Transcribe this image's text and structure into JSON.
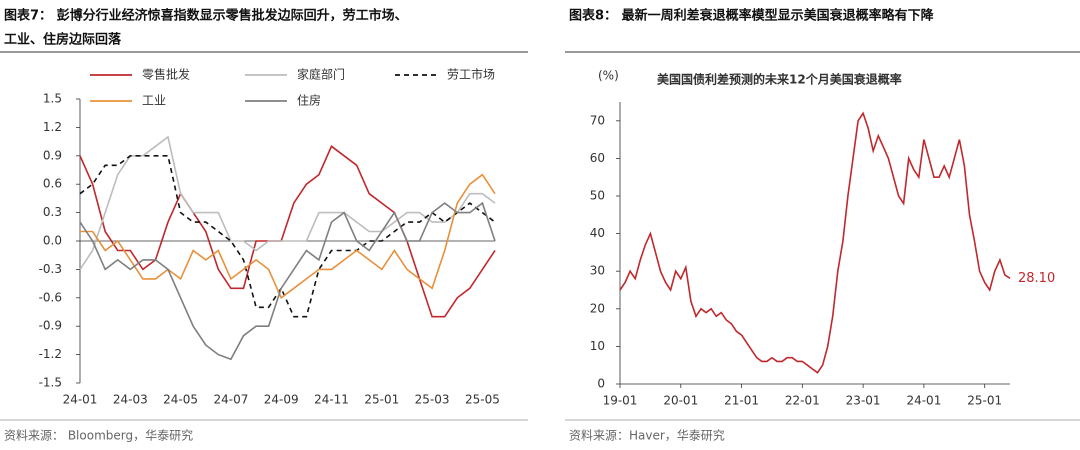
{
  "chart_data": [
    {
      "type": "line",
      "title": [
        "图表7： 彭博分行业经济惊喜指数显示零售批发边际回升，劳工市场、",
        "工业、住房边际回落"
      ],
      "categories": [
        "24-01",
        null,
        null,
        null,
        "24-03",
        null,
        null,
        null,
        "24-05",
        null,
        null,
        null,
        "24-07",
        null,
        null,
        null,
        "24-09",
        null,
        null,
        null,
        "24-11",
        null,
        null,
        null,
        "25-01",
        null,
        null,
        null,
        "25-03",
        null,
        null,
        null,
        "25-05",
        null
      ],
      "series": [
        {
          "name": "零售批发",
          "color": "#c0282d",
          "dash": false,
          "values": [
            0.9,
            0.6,
            0.1,
            -0.1,
            -0.1,
            -0.3,
            -0.2,
            0.2,
            0.5,
            0.3,
            0.1,
            -0.3,
            -0.5,
            -0.5,
            0.0,
            0.0,
            0.0,
            0.4,
            0.6,
            0.7,
            1.0,
            0.9,
            0.8,
            0.5,
            0.4,
            0.3,
            0.0,
            -0.4,
            -0.8,
            -0.8,
            -0.6,
            -0.5,
            -0.3,
            -0.1
          ]
        },
        {
          "name": "家庭部门",
          "color": "#bdbdbd",
          "dash": false,
          "values": [
            -0.3,
            -0.1,
            0.3,
            0.7,
            0.9,
            0.9,
            1.0,
            1.1,
            0.5,
            0.3,
            0.3,
            0.3,
            0.0,
            0.0,
            -0.1,
            0.0,
            0.0,
            0.0,
            0.0,
            0.3,
            0.3,
            0.3,
            0.2,
            0.1,
            0.1,
            0.2,
            0.3,
            0.3,
            0.2,
            0.2,
            0.3,
            0.5,
            0.5,
            0.4
          ]
        },
        {
          "name": "劳工市场",
          "color": "#111111",
          "dash": true,
          "values": [
            0.5,
            0.6,
            0.8,
            0.8,
            0.9,
            0.9,
            0.9,
            0.9,
            0.3,
            0.2,
            0.2,
            0.1,
            0.0,
            -0.2,
            -0.7,
            -0.7,
            -0.5,
            -0.8,
            -0.8,
            -0.3,
            -0.1,
            -0.1,
            -0.1,
            0.0,
            0.0,
            0.1,
            0.2,
            0.2,
            0.3,
            0.2,
            0.3,
            0.4,
            0.3,
            0.2
          ]
        },
        {
          "name": "工业",
          "color": "#e8913c",
          "dash": false,
          "values": [
            0.1,
            0.1,
            -0.1,
            0.0,
            -0.2,
            -0.4,
            -0.4,
            -0.3,
            -0.4,
            -0.1,
            -0.2,
            -0.1,
            -0.4,
            -0.3,
            -0.2,
            -0.3,
            -0.6,
            -0.5,
            -0.4,
            -0.3,
            -0.3,
            -0.2,
            -0.1,
            -0.2,
            -0.3,
            -0.1,
            -0.3,
            -0.4,
            -0.5,
            -0.1,
            0.4,
            0.6,
            0.7,
            0.5
          ]
        },
        {
          "name": "住房",
          "color": "#7f7f7f",
          "dash": false,
          "values": [
            0.2,
            0.0,
            -0.3,
            -0.2,
            -0.3,
            -0.2,
            -0.2,
            -0.3,
            -0.6,
            -0.9,
            -1.1,
            -1.2,
            -1.25,
            -1.0,
            -0.9,
            -0.9,
            -0.5,
            -0.3,
            -0.1,
            -0.2,
            0.2,
            0.3,
            0.0,
            -0.1,
            0.1,
            0.3,
            0.0,
            0.0,
            0.3,
            0.4,
            0.3,
            0.3,
            0.4,
            0.0
          ]
        }
      ],
      "ylim": [
        -1.5,
        1.5
      ],
      "yticks": [
        1.5,
        1.2,
        0.9,
        0.6,
        0.3,
        {
          "value": 0,
          "label": "0.0"
        },
        -0.3,
        -0.6,
        -0.9,
        -1.2,
        -1.5
      ],
      "zero_line": true,
      "source": "资料来源：  Bloomberg，华泰研究"
    },
    {
      "type": "line",
      "title": [
        "图表8： 最新一周利差衰退概率模型显示美国衰退概率略有下降"
      ],
      "subtitle": "美国国债利差预测的未来12个月美国衰退概率",
      "y_unit": "(%)",
      "categories": [
        "19-01",
        null,
        null,
        null,
        null,
        null,
        null,
        null,
        null,
        null,
        null,
        null,
        "20-01",
        null,
        null,
        null,
        null,
        null,
        null,
        null,
        null,
        null,
        null,
        null,
        "21-01",
        null,
        null,
        null,
        null,
        null,
        null,
        null,
        null,
        null,
        null,
        null,
        "22-01",
        null,
        null,
        null,
        null,
        null,
        null,
        null,
        null,
        null,
        null,
        null,
        "23-01",
        null,
        null,
        null,
        null,
        null,
        null,
        null,
        null,
        null,
        null,
        null,
        "24-01",
        null,
        null,
        null,
        null,
        null,
        null,
        null,
        null,
        null,
        null,
        null,
        "25-01",
        null,
        null,
        null,
        null,
        null
      ],
      "series": [
        {
          "color": "#c0282d",
          "dash": false,
          "values": [
            25,
            27,
            30,
            28,
            33,
            37,
            40,
            35,
            30,
            27,
            25,
            30,
            28,
            31,
            22,
            18,
            20,
            19,
            20,
            18,
            19,
            17,
            16,
            14,
            13,
            11,
            9,
            7,
            6,
            6,
            7,
            6,
            6,
            7,
            7,
            6,
            6,
            5,
            4,
            3,
            5,
            10,
            18,
            30,
            38,
            50,
            60,
            70,
            72,
            68,
            62,
            66,
            63,
            60,
            55,
            50,
            48,
            60,
            57,
            55,
            65,
            60,
            55,
            55,
            58,
            55,
            60,
            65,
            58,
            45,
            38,
            30,
            27,
            25,
            30,
            33,
            29,
            28.1
          ],
          "value_labels": [
            null,
            null,
            null,
            null,
            null,
            null,
            null,
            null,
            null,
            null,
            null,
            null,
            null,
            null,
            null,
            null,
            null,
            null,
            null,
            null,
            null,
            null,
            null,
            null,
            null,
            null,
            null,
            null,
            null,
            null,
            null,
            null,
            null,
            null,
            null,
            null,
            null,
            null,
            null,
            null,
            null,
            null,
            null,
            null,
            null,
            null,
            null,
            null,
            null,
            null,
            null,
            null,
            null,
            null,
            null,
            null,
            null,
            null,
            null,
            null,
            null,
            null,
            null,
            null,
            null,
            null,
            null,
            null,
            null,
            null,
            null,
            null,
            null,
            null,
            null,
            null,
            null,
            "28.10"
          ]
        }
      ],
      "ylim": [
        0,
        75
      ],
      "yticks": [
        0,
        10,
        20,
        30,
        40,
        50,
        60,
        70
      ],
      "zero_line": false,
      "source": "资料来源：Haver，华泰研究"
    }
  ]
}
